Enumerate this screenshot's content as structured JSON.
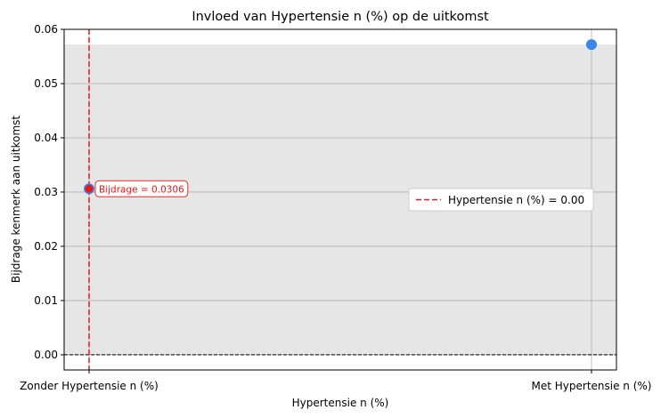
{
  "chart_data": {
    "type": "scatter",
    "title": "Invloed van Hypertensie n (%) op de uitkomst",
    "xlabel": "Hypertensie n (%)",
    "ylabel": "Bijdrage kenmerk aan uitkomst",
    "categories": [
      "Zonder Hypertensie n (%)",
      "Met Hypertensie n (%)"
    ],
    "values": [
      0.0306,
      0.0572
    ],
    "ylim": [
      -0.0028,
      0.06
    ],
    "yticks": [
      "0.00",
      "0.01",
      "0.02",
      "0.03",
      "0.04",
      "0.05",
      "0.06"
    ],
    "grid": true,
    "shaded_region_ylim": [
      0,
      0.0572
    ],
    "reference_line_y": 0,
    "vertical_marker": {
      "label": "Hypertensie n (%) = 0.00",
      "category_index": 0
    },
    "annotation": {
      "text": "Bijdrage = 0.0306",
      "category_index": 0,
      "value": 0.0306
    },
    "legend_placement": "center-right",
    "colors": {
      "points": "#3a86e8",
      "highlight": "#e8191e",
      "marker_line": "#e8191e",
      "shade": "#e6e6e6",
      "grid": "#b0b0b0"
    }
  }
}
